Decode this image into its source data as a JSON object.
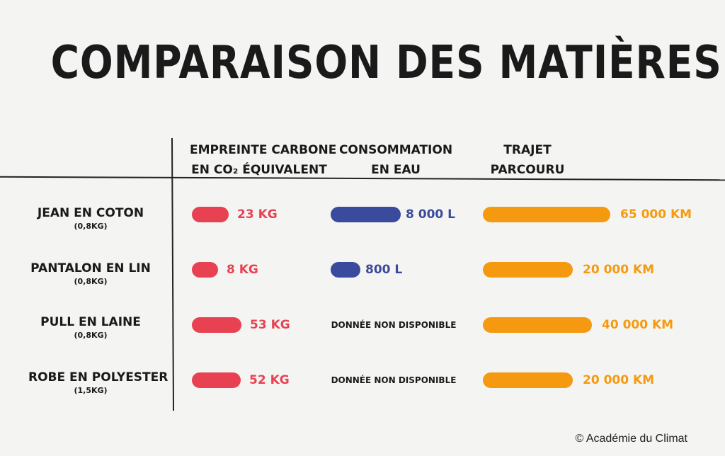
{
  "title": "COMPARAISON DES MATIÈRES",
  "credit": "© Académie du Climat",
  "colors": {
    "carbon": "#e84152",
    "water": "#3a4a9c",
    "trip": "#f59a10",
    "background": "#f4f5f2"
  },
  "chart_data": {
    "type": "bar",
    "orientation": "horizontal",
    "categories": [
      {
        "name": "JEAN EN COTON",
        "weight": "(0,8KG)"
      },
      {
        "name": "PANTALON EN LIN",
        "weight": "(0,8KG)"
      },
      {
        "name": "PULL EN LAINE",
        "weight": "(0,8KG)"
      },
      {
        "name": "ROBE EN POLYESTER",
        "weight": "(1,5KG)"
      }
    ],
    "series": [
      {
        "key": "carbon",
        "header": [
          "EMPREINTE CARBONE",
          "EN CO₂ ÉQUIVALENT"
        ],
        "values": [
          23,
          8,
          53,
          52
        ],
        "labels": [
          "23 KG",
          "8 KG",
          "53 KG",
          "52 KG"
        ],
        "scale_max": 53
      },
      {
        "key": "water",
        "header": [
          "CONSOMMATION",
          "EN EAU"
        ],
        "values": [
          8000,
          800,
          null,
          null
        ],
        "labels": [
          "8 000 L",
          "800 L",
          "DONNÉE NON DISPONIBLE",
          "DONNÉE NON DISPONIBLE"
        ],
        "scale_max": 8000
      },
      {
        "key": "trip",
        "header": [
          "TRAJET",
          "PARCOURU"
        ],
        "values": [
          65000,
          20000,
          40000,
          20000
        ],
        "labels": [
          "65 000 KM",
          "20 000 KM",
          "40 000 KM",
          "20 000 KM"
        ],
        "scale_max": 65000
      }
    ]
  }
}
